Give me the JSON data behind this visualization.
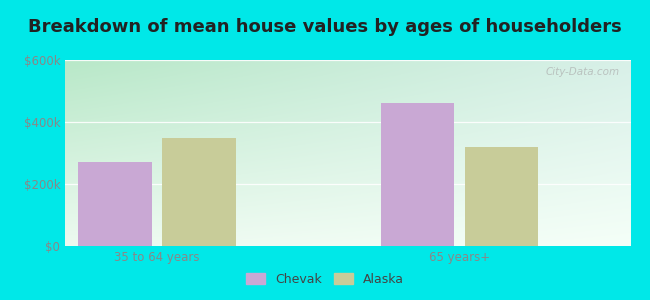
{
  "title": "Breakdown of mean house values by ages of householders",
  "categories": [
    "35 to 64 years",
    "65 years+"
  ],
  "chevak_values": [
    270000,
    460000
  ],
  "alaska_values": [
    350000,
    320000
  ],
  "chevak_color": "#c9a8d4",
  "alaska_color": "#c8cc99",
  "ylim": [
    0,
    600000
  ],
  "yticks": [
    0,
    200000,
    400000,
    600000
  ],
  "ytick_labels": [
    "$0",
    "$200k",
    "$400k",
    "$600k"
  ],
  "grad_top_left": "#b8e8c8",
  "grad_top_right": "#d8f0e8",
  "grad_bottom": "#f5fff8",
  "outer_bg": "#00e8e8",
  "bar_width": 0.28,
  "x_positions": [
    0.35,
    1.5
  ],
  "x_lim": [
    0.0,
    2.15
  ],
  "legend_labels": [
    "Chevak",
    "Alaska"
  ],
  "title_fontsize": 13,
  "tick_fontsize": 8.5,
  "legend_fontsize": 9,
  "watermark": "City-Data.com"
}
